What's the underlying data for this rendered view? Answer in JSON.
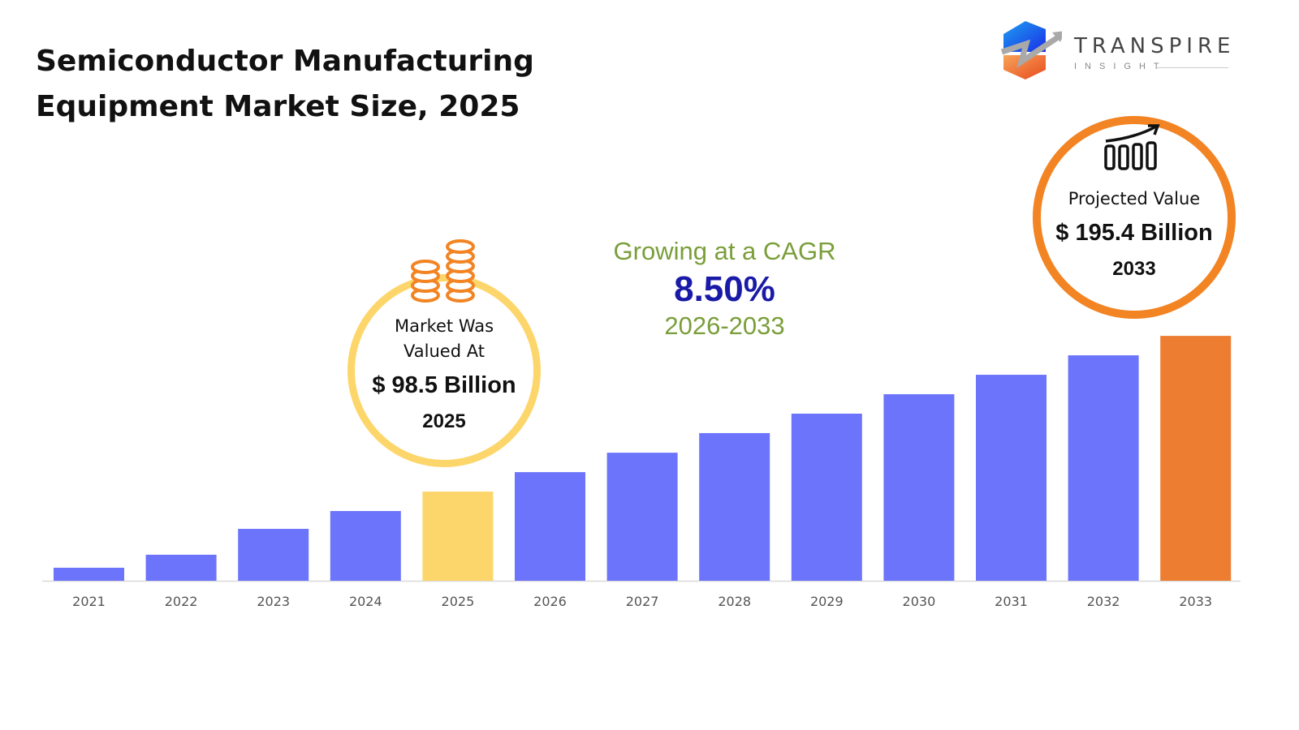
{
  "header": {
    "title_line1": "Semiconductor Manufacturing",
    "title_line2": "Equipment Market Size, 2025"
  },
  "logo": {
    "name": "TRANSPIRE",
    "tagline": "INSIGHT"
  },
  "callout_2025": {
    "label_line1": "Market Was",
    "label_line2": "Valued At",
    "value": "$ 98.5 Billion",
    "year": "2025",
    "icon": "coins-icon",
    "color": "#fdd66b"
  },
  "cagr": {
    "label": "Growing at a CAGR",
    "rate": "8.50%",
    "period": "2026-2033"
  },
  "callout_2033": {
    "label": "Projected Value",
    "value": "$ 195.4 Billion",
    "year": "2033",
    "icon": "growth-chart-icon",
    "color": "#f28423"
  },
  "chart_data": {
    "type": "bar",
    "categories": [
      "2021",
      "2022",
      "2023",
      "2024",
      "2025",
      "2026",
      "2027",
      "2028",
      "2029",
      "2030",
      "2031",
      "2032",
      "2033"
    ],
    "values": [
      51.1,
      59.2,
      75.3,
      86.4,
      98.5,
      110.6,
      122.7,
      134.9,
      147.0,
      159.1,
      171.2,
      183.3,
      195.4
    ],
    "ylim": [
      43,
      200
    ],
    "grid": false,
    "colors": {
      "default": "#6b74fb",
      "highlight_2025": "#fdd66b",
      "highlight_2033": "#ed7d31"
    }
  }
}
